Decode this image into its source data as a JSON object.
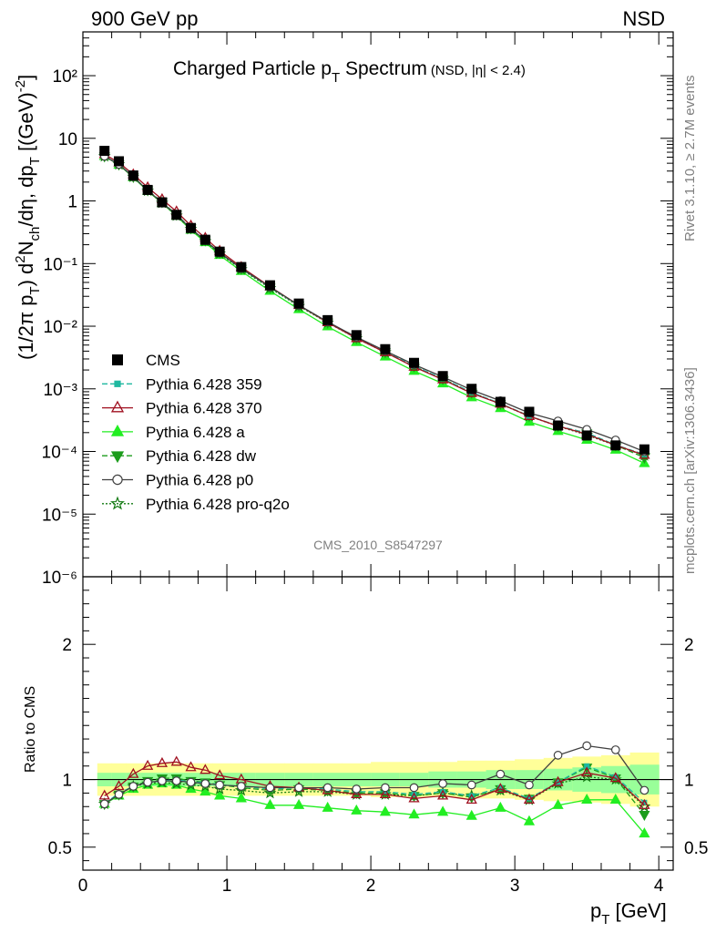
{
  "header": {
    "left_label": "900 GeV pp",
    "right_label": "NSD"
  },
  "side_labels": {
    "rivet": "Rivet 3.1.10, ≥ 2.7M events",
    "mcplots": "mcplots.cern.ch [arXiv:1306.3436]"
  },
  "watermark": "CMS_2010_S8547297",
  "colors": {
    "band_yellow": "#ffff99",
    "band_green": "#99ff99",
    "cms": "#000000",
    "p359": "#1fb8a0",
    "p370": "#a01020",
    "pa": "#22ee22",
    "pdw": "#1c9c1c",
    "pp0": "#404040",
    "pq2o": "#127a12"
  },
  "chart_data": [
    {
      "type": "scatter",
      "title_main": "Charged Particle p",
      "title_sub": "T",
      "title_tail": " Spectrum",
      "title_small": "(NSD, |η| < 2.4)",
      "ylabel": "(1/2π p_T) d²N_ch/dη, dp_T [(GeV)⁻²]",
      "yscale": "log",
      "ylim": [
        1e-06,
        500
      ],
      "xlim": [
        0,
        4.1
      ],
      "y_tick_labels": [
        "10⁻⁶",
        "10⁻⁵",
        "10⁻⁴",
        "10⁻³",
        "10⁻²",
        "10⁻¹",
        "1",
        "10",
        "10²"
      ],
      "legend_position": "bottom-left",
      "x": [
        0.15,
        0.25,
        0.35,
        0.45,
        0.55,
        0.65,
        0.75,
        0.85,
        0.95,
        1.1,
        1.3,
        1.5,
        1.7,
        1.9,
        2.1,
        2.3,
        2.5,
        2.7,
        2.9,
        3.1,
        3.3,
        3.5,
        3.7,
        3.9
      ],
      "series": [
        {
          "name": "CMS",
          "key": "cms",
          "values": [
            6.3,
            4.3,
            2.55,
            1.5,
            0.95,
            0.6,
            0.37,
            0.24,
            0.155,
            0.088,
            0.045,
            0.023,
            0.0125,
            0.0072,
            0.0043,
            0.0026,
            0.0016,
            0.001,
            0.00062,
            0.00043,
            0.00026,
            0.00018,
            0.000125,
            0.000108
          ]
        },
        {
          "name": "Pythia 6.428 359",
          "key": "p359",
          "ratio": [
            0.82,
            0.9,
            0.95,
            0.98,
            0.99,
            1.0,
            0.98,
            0.98,
            0.96,
            0.95,
            0.93,
            0.94,
            0.93,
            0.91,
            0.91,
            0.89,
            0.91,
            0.88,
            0.94,
            0.86,
            0.98,
            1.1,
            1.02,
            0.83
          ]
        },
        {
          "name": "Pythia 6.428 370",
          "key": "p370",
          "ratio": [
            0.88,
            0.95,
            1.04,
            1.1,
            1.12,
            1.13,
            1.09,
            1.07,
            1.03,
            1.0,
            0.95,
            0.94,
            0.92,
            0.89,
            0.89,
            0.86,
            0.88,
            0.85,
            0.93,
            0.85,
            0.98,
            1.05,
            1.01,
            0.81
          ]
        },
        {
          "name": "Pythia 6.428 a",
          "key": "pa",
          "ratio": [
            0.82,
            0.88,
            0.93,
            0.96,
            0.97,
            0.96,
            0.93,
            0.91,
            0.88,
            0.86,
            0.81,
            0.81,
            0.79,
            0.77,
            0.76,
            0.74,
            0.76,
            0.73,
            0.79,
            0.69,
            0.81,
            0.85,
            0.85,
            0.6
          ]
        },
        {
          "name": "Pythia 6.428 dw",
          "key": "pdw",
          "ratio": [
            0.82,
            0.89,
            0.95,
            0.99,
            1.01,
            1.01,
            0.99,
            0.98,
            0.96,
            0.94,
            0.92,
            0.93,
            0.92,
            0.9,
            0.9,
            0.88,
            0.9,
            0.87,
            0.93,
            0.86,
            0.98,
            1.09,
            1.01,
            0.74
          ]
        },
        {
          "name": "Pythia 6.428 p0",
          "key": "pp0",
          "ratio": [
            0.82,
            0.89,
            0.95,
            0.98,
            0.99,
            0.99,
            0.98,
            0.97,
            0.96,
            0.95,
            0.94,
            0.94,
            0.94,
            0.93,
            0.94,
            0.94,
            0.97,
            0.96,
            1.04,
            0.96,
            1.18,
            1.25,
            1.22,
            0.92
          ]
        },
        {
          "name": "Pythia 6.428 pro-q2o",
          "key": "pq2o",
          "ratio": [
            0.82,
            0.89,
            0.95,
            0.97,
            0.98,
            0.97,
            0.96,
            0.95,
            0.93,
            0.92,
            0.9,
            0.91,
            0.91,
            0.89,
            0.89,
            0.88,
            0.9,
            0.88,
            0.92,
            0.85,
            0.97,
            1.02,
            1.0,
            0.8
          ]
        }
      ]
    },
    {
      "type": "line",
      "ylabel": "Ratio to CMS",
      "xlabel": "p_T [GeV]",
      "xlim": [
        0,
        4.1
      ],
      "ylim": [
        0.33,
        2.5
      ],
      "x_tick_labels": [
        "0",
        "1",
        "2",
        "3",
        "4"
      ],
      "y_tick_labels": [
        "0.5",
        "1",
        "2"
      ],
      "band_outer": [
        0.12,
        0.12,
        0.12,
        0.12,
        0.12,
        0.12,
        0.12,
        0.12,
        0.12,
        0.12,
        0.12,
        0.12,
        0.12,
        0.12,
        0.13,
        0.13,
        0.13,
        0.14,
        0.14,
        0.15,
        0.16,
        0.17,
        0.18,
        0.2
      ],
      "band_inner": [
        0.05,
        0.05,
        0.05,
        0.05,
        0.05,
        0.05,
        0.05,
        0.05,
        0.05,
        0.05,
        0.05,
        0.05,
        0.05,
        0.05,
        0.05,
        0.05,
        0.06,
        0.06,
        0.07,
        0.07,
        0.08,
        0.09,
        0.1,
        0.11
      ]
    }
  ]
}
